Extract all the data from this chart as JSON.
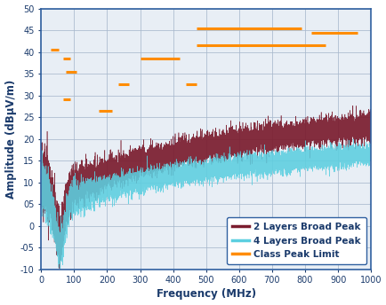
{
  "xlabel": "Frequency (MHz)",
  "ylabel": "Amplitude (dBµV/m)",
  "xlim": [
    0,
    1000
  ],
  "ylim": [
    -10,
    50
  ],
  "yticks": [
    -10,
    -5,
    0,
    5,
    10,
    15,
    20,
    25,
    30,
    35,
    40,
    45,
    50
  ],
  "xticks": [
    0,
    100,
    200,
    300,
    400,
    500,
    600,
    700,
    800,
    900,
    1000
  ],
  "ytick_labels": [
    "-10",
    "-05",
    "0",
    "05",
    "10",
    "15",
    "20",
    "25",
    "30",
    "35",
    "40",
    "45",
    "50"
  ],
  "color_2layer": "#7B1C2E",
  "color_4layer": "#5CCFE0",
  "color_limit": "#FF8C00",
  "background_color": "#E8EEF5",
  "grid_color": "#A8B8CC",
  "spine_color": "#3060A0",
  "text_color": "#1a3a6b",
  "class_peak_limits": [
    {
      "x_start": 30,
      "x_end": 54,
      "y": 40.5
    },
    {
      "x_start": 68,
      "x_end": 88,
      "y": 38.5
    },
    {
      "x_start": 76,
      "x_end": 107,
      "y": 35.5
    },
    {
      "x_start": 68,
      "x_end": 88,
      "y": 29.0
    },
    {
      "x_start": 174,
      "x_end": 216,
      "y": 26.5
    },
    {
      "x_start": 235,
      "x_end": 265,
      "y": 32.5
    },
    {
      "x_start": 440,
      "x_end": 470,
      "y": 32.5
    },
    {
      "x_start": 300,
      "x_end": 420,
      "y": 38.5
    },
    {
      "x_start": 470,
      "x_end": 790,
      "y": 45.5
    },
    {
      "x_start": 470,
      "x_end": 862,
      "y": 41.5
    },
    {
      "x_start": 820,
      "x_end": 960,
      "y": 44.5
    }
  ],
  "legend_labels": [
    "2 Layers Broad Peak",
    "4 Layers Broad Peak",
    "Class Peak Limit"
  ],
  "seed": 42
}
